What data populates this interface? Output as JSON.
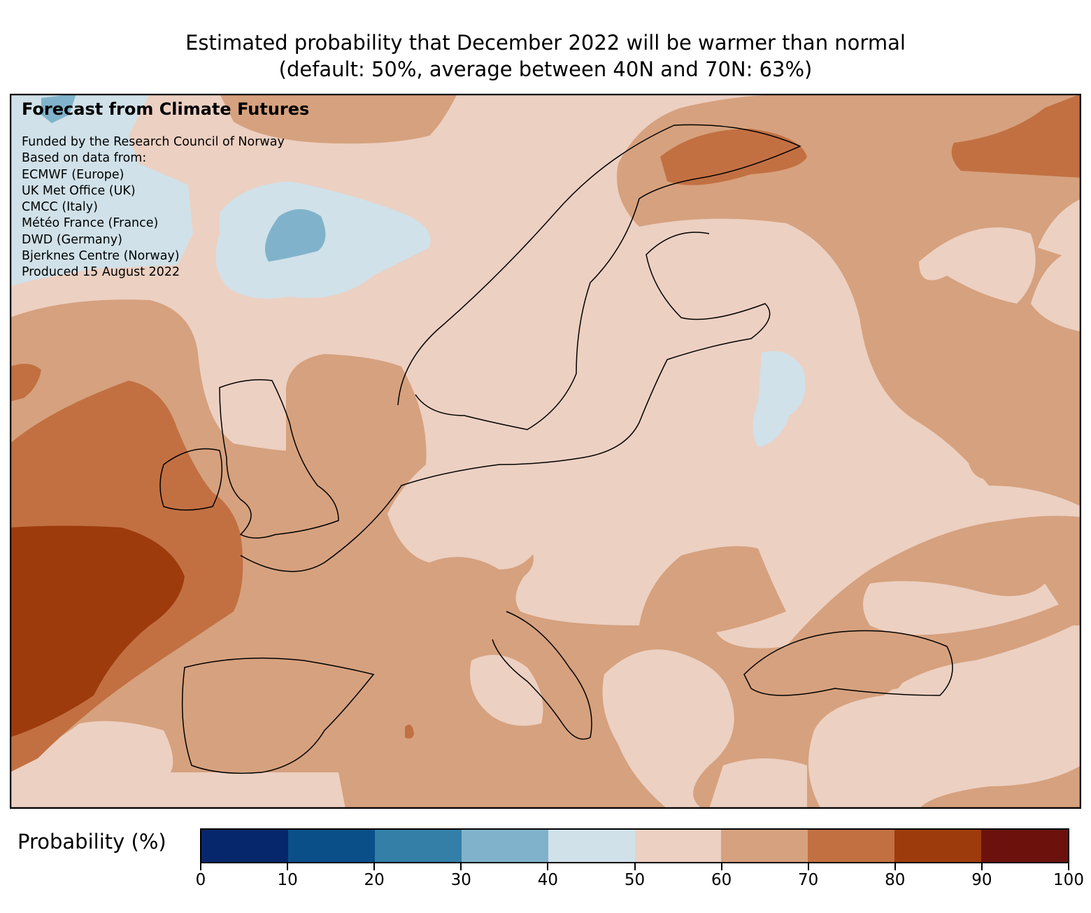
{
  "title": {
    "line1": "Estimated probability that December 2022 will be warmer than normal",
    "line2": "(default: 50%, average between 40N and 70N: 63%)"
  },
  "info": {
    "heading": "Forecast from Climate Futures",
    "lines": [
      "Funded by the Research Council of Norway",
      "Based on data from:",
      "ECMWF (Europe)",
      "UK Met Office (UK)",
      "CMCC (Italy)",
      "Météo France (France)",
      "DWD (Germany)",
      "Bjerknes Centre (Norway)",
      "Produced 15 August 2022"
    ]
  },
  "colorbar": {
    "label": "Probability (%)",
    "ticks": [
      "0",
      "10",
      "20",
      "30",
      "40",
      "50",
      "60",
      "70",
      "80",
      "90",
      "100"
    ],
    "bins": [
      {
        "range": "0-10",
        "color": "#06276b"
      },
      {
        "range": "10-20",
        "color": "#0a4f88"
      },
      {
        "range": "20-30",
        "color": "#337fa7"
      },
      {
        "range": "30-40",
        "color": "#80b3cb"
      },
      {
        "range": "40-50",
        "color": "#d0e1e9"
      },
      {
        "range": "50-60",
        "color": "#ecd0c2"
      },
      {
        "range": "60-70",
        "color": "#d6a17e"
      },
      {
        "range": "70-80",
        "color": "#c27042"
      },
      {
        "range": "80-90",
        "color": "#9e3b0c"
      },
      {
        "range": "90-100",
        "color": "#6d110c"
      }
    ]
  }
}
